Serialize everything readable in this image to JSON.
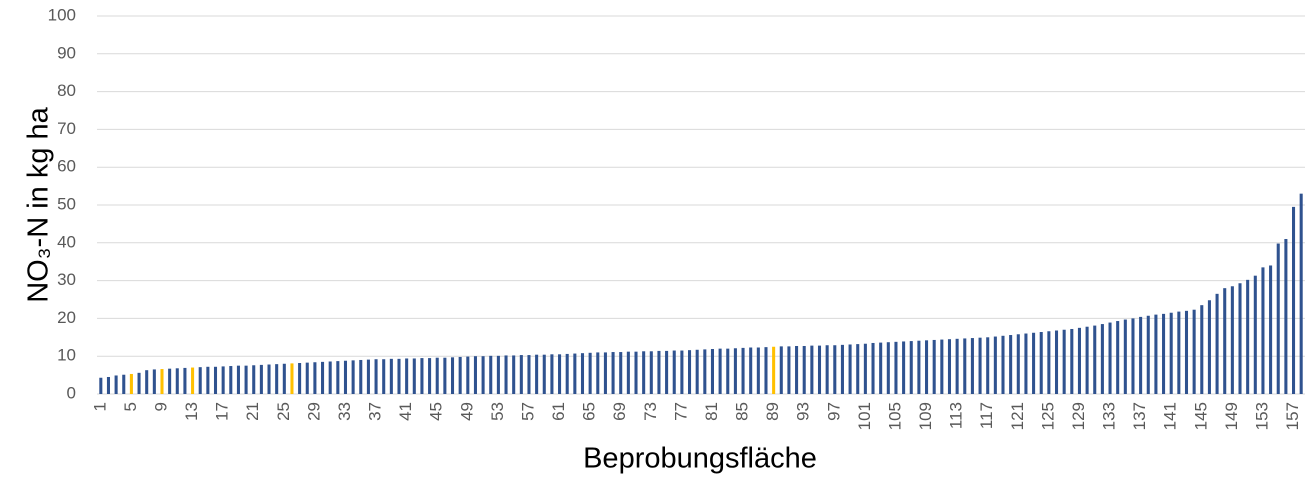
{
  "chart_data": {
    "type": "bar",
    "x_label": "Beprobungsfläche",
    "y_label": "NO₃-N in kg ha",
    "categories": [
      "1",
      null,
      null,
      null,
      "5",
      null,
      null,
      null,
      "9",
      null,
      null,
      null,
      "13",
      null,
      null,
      null,
      "17",
      null,
      null,
      null,
      "21",
      null,
      null,
      null,
      "25",
      null,
      null,
      null,
      "29",
      null,
      null,
      null,
      "33",
      null,
      null,
      null,
      "37",
      null,
      null,
      null,
      "41",
      null,
      null,
      null,
      "45",
      null,
      null,
      null,
      "49",
      null,
      null,
      null,
      "53",
      null,
      null,
      null,
      "57",
      null,
      null,
      null,
      "61",
      null,
      null,
      null,
      "65",
      null,
      null,
      null,
      "69",
      null,
      null,
      null,
      "73",
      null,
      null,
      null,
      "77",
      null,
      null,
      null,
      "81",
      null,
      null,
      null,
      "85",
      null,
      null,
      null,
      "89",
      null,
      null,
      null,
      "93",
      null,
      null,
      null,
      "97",
      null,
      null,
      null,
      "101",
      null,
      null,
      null,
      "105",
      null,
      null,
      null,
      "109",
      null,
      null,
      null,
      "113",
      null,
      null,
      null,
      "117",
      null,
      null,
      null,
      "121",
      null,
      null,
      null,
      "125",
      null,
      null,
      null,
      "129",
      null,
      null,
      null,
      "133",
      null,
      null,
      null,
      "137",
      null,
      null,
      null,
      "141",
      null,
      null,
      null,
      "145",
      null,
      null,
      null,
      "149",
      null,
      null,
      null,
      "153",
      null,
      null,
      null,
      "157",
      null
    ],
    "values": [
      4.3,
      4.5,
      4.9,
      5.1,
      5.3,
      5.6,
      6.3,
      6.5,
      6.6,
      6.7,
      6.8,
      6.9,
      7.0,
      7.1,
      7.2,
      7.2,
      7.3,
      7.4,
      7.5,
      7.5,
      7.6,
      7.7,
      7.8,
      7.9,
      8.0,
      8.1,
      8.2,
      8.3,
      8.4,
      8.5,
      8.6,
      8.7,
      8.8,
      8.9,
      9.0,
      9.1,
      9.2,
      9.2,
      9.3,
      9.3,
      9.4,
      9.4,
      9.5,
      9.5,
      9.6,
      9.6,
      9.7,
      9.8,
      9.9,
      10.0,
      10.0,
      10.1,
      10.1,
      10.2,
      10.2,
      10.3,
      10.3,
      10.4,
      10.4,
      10.5,
      10.5,
      10.6,
      10.7,
      10.8,
      10.9,
      11.0,
      11.0,
      11.1,
      11.1,
      11.2,
      11.2,
      11.3,
      11.3,
      11.4,
      11.4,
      11.5,
      11.5,
      11.6,
      11.7,
      11.8,
      11.9,
      12.0,
      12.0,
      12.1,
      12.2,
      12.3,
      12.3,
      12.4,
      12.5,
      12.6,
      12.6,
      12.7,
      12.7,
      12.8,
      12.8,
      12.9,
      12.9,
      13.0,
      13.1,
      13.2,
      13.3,
      13.5,
      13.6,
      13.7,
      13.8,
      13.9,
      14.0,
      14.1,
      14.2,
      14.3,
      14.4,
      14.5,
      14.6,
      14.7,
      14.8,
      14.9,
      15.0,
      15.2,
      15.4,
      15.6,
      15.8,
      16.0,
      16.2,
      16.4,
      16.6,
      16.8,
      17.0,
      17.2,
      17.5,
      17.8,
      18.1,
      18.5,
      18.9,
      19.3,
      19.7,
      20.0,
      20.4,
      20.7,
      21.0,
      21.2,
      21.5,
      21.8,
      22.0,
      22.3,
      23.5,
      24.8,
      26.5,
      28.0,
      28.5,
      29.3,
      30.2,
      31.3,
      33.5,
      34.0,
      39.8,
      41.0,
      49.5,
      53.0
    ],
    "colors": [
      "#2f528f",
      "#2f528f",
      "#2f528f",
      "#2f528f",
      "#ffc000",
      "#2f528f",
      "#2f528f",
      "#2f528f",
      "#ffc000",
      "#2f528f",
      "#2f528f",
      "#2f528f",
      "#ffc000",
      "#2f528f",
      "#2f528f",
      "#2f528f",
      "#2f528f",
      "#2f528f",
      "#2f528f",
      "#2f528f",
      "#2f528f",
      "#2f528f",
      "#2f528f",
      "#2f528f",
      "#2f528f",
      "#ffc000",
      "#2f528f",
      "#2f528f",
      "#2f528f",
      "#2f528f",
      "#2f528f",
      "#2f528f",
      "#2f528f",
      "#2f528f",
      "#2f528f",
      "#2f528f",
      "#2f528f",
      "#2f528f",
      "#2f528f",
      "#2f528f",
      "#2f528f",
      "#2f528f",
      "#2f528f",
      "#2f528f",
      "#2f528f",
      "#2f528f",
      "#2f528f",
      "#2f528f",
      "#2f528f",
      "#2f528f",
      "#2f528f",
      "#2f528f",
      "#2f528f",
      "#2f528f",
      "#2f528f",
      "#2f528f",
      "#2f528f",
      "#2f528f",
      "#2f528f",
      "#2f528f",
      "#2f528f",
      "#2f528f",
      "#2f528f",
      "#2f528f",
      "#2f528f",
      "#2f528f",
      "#2f528f",
      "#2f528f",
      "#2f528f",
      "#2f528f",
      "#2f528f",
      "#2f528f",
      "#2f528f",
      "#2f528f",
      "#2f528f",
      "#2f528f",
      "#2f528f",
      "#2f528f",
      "#2f528f",
      "#2f528f",
      "#2f528f",
      "#2f528f",
      "#2f528f",
      "#2f528f",
      "#2f528f",
      "#2f528f",
      "#2f528f",
      "#2f528f",
      "#ffc000",
      "#2f528f",
      "#2f528f",
      "#2f528f",
      "#2f528f",
      "#2f528f",
      "#2f528f",
      "#2f528f",
      "#2f528f",
      "#2f528f",
      "#2f528f",
      "#2f528f",
      "#2f528f",
      "#2f528f",
      "#2f528f",
      "#2f528f",
      "#2f528f",
      "#2f528f",
      "#2f528f",
      "#2f528f",
      "#2f528f",
      "#2f528f",
      "#2f528f",
      "#2f528f",
      "#2f528f",
      "#2f528f",
      "#2f528f",
      "#2f528f",
      "#2f528f",
      "#2f528f",
      "#2f528f",
      "#2f528f",
      "#2f528f",
      "#2f528f",
      "#2f528f",
      "#2f528f",
      "#2f528f",
      "#2f528f",
      "#2f528f",
      "#2f528f",
      "#2f528f",
      "#2f528f",
      "#2f528f",
      "#2f528f",
      "#2f528f",
      "#2f528f",
      "#2f528f",
      "#2f528f",
      "#2f528f",
      "#2f528f",
      "#2f528f",
      "#2f528f",
      "#2f528f",
      "#2f528f",
      "#2f528f",
      "#2f528f",
      "#2f528f",
      "#2f528f",
      "#2f528f",
      "#2f528f",
      "#2f528f",
      "#2f528f",
      "#2f528f",
      "#2f528f",
      "#2f528f",
      "#2f528f",
      "#2f528f",
      "#2f528f",
      "#2f528f",
      "#2f528f"
    ],
    "ylim": [
      0,
      100
    ],
    "yticks": [
      0,
      10,
      20,
      30,
      40,
      50,
      60,
      70,
      80,
      90,
      100
    ],
    "grid": true
  }
}
